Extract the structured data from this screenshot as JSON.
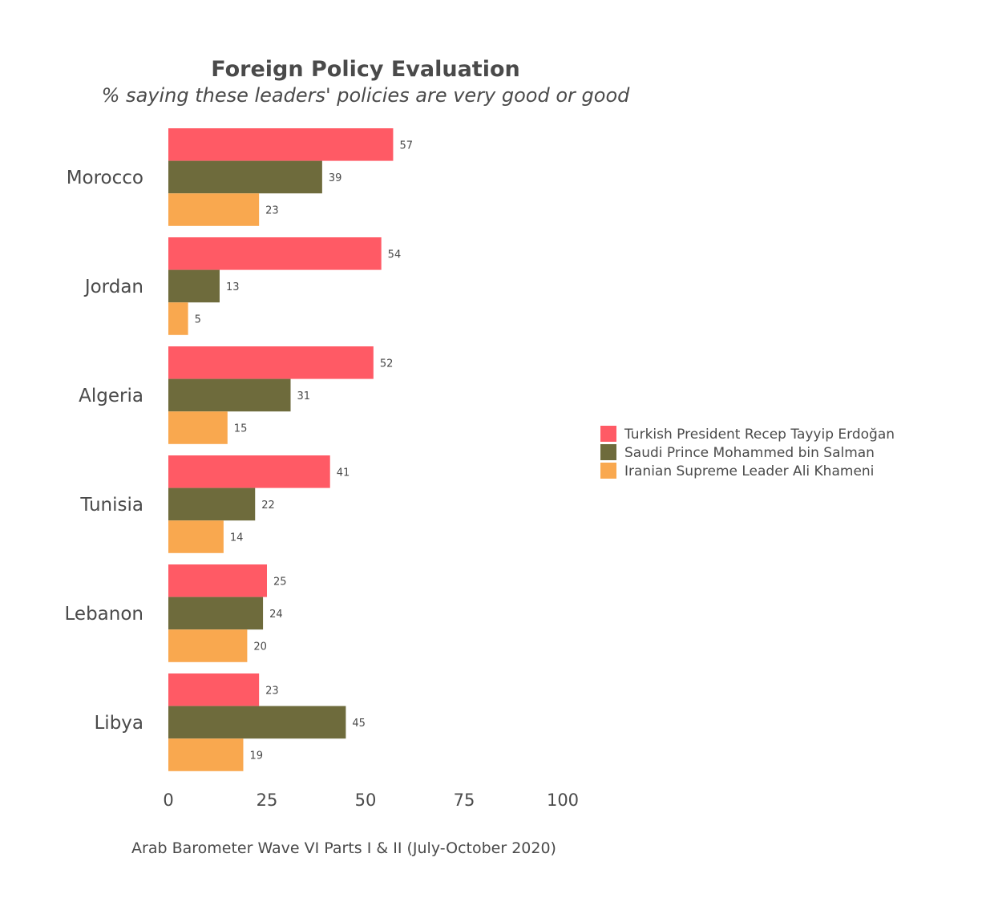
{
  "chart_data": {
    "type": "bar",
    "orientation": "horizontal",
    "title": "Foreign Policy Evaluation",
    "subtitle": "% saying these leaders' policies are very good or good",
    "caption": "Arab Barometer Wave VI Parts I & II  (July-October 2020)",
    "categories": [
      "Morocco",
      "Jordan",
      "Algeria",
      "Tunisia",
      "Lebanon",
      "Libya"
    ],
    "series": [
      {
        "name": "Turkish President Recep Tayyip Erdoğan",
        "color": "#ff5a65",
        "values": [
          57,
          54,
          52,
          41,
          25,
          23
        ]
      },
      {
        "name": "Saudi Prince Mohammed bin Salman",
        "color": "#6e6b3c",
        "values": [
          39,
          13,
          31,
          22,
          24,
          45
        ]
      },
      {
        "name": "Iranian Supreme Leader Ali Khameni",
        "color": "#f9a84f",
        "values": [
          23,
          5,
          15,
          14,
          20,
          19
        ]
      }
    ],
    "xlim": [
      0,
      100
    ],
    "xticks": [
      0,
      25,
      50,
      75,
      100
    ],
    "xlabel": "",
    "ylabel": "",
    "grid": false,
    "legend_position": "right"
  }
}
